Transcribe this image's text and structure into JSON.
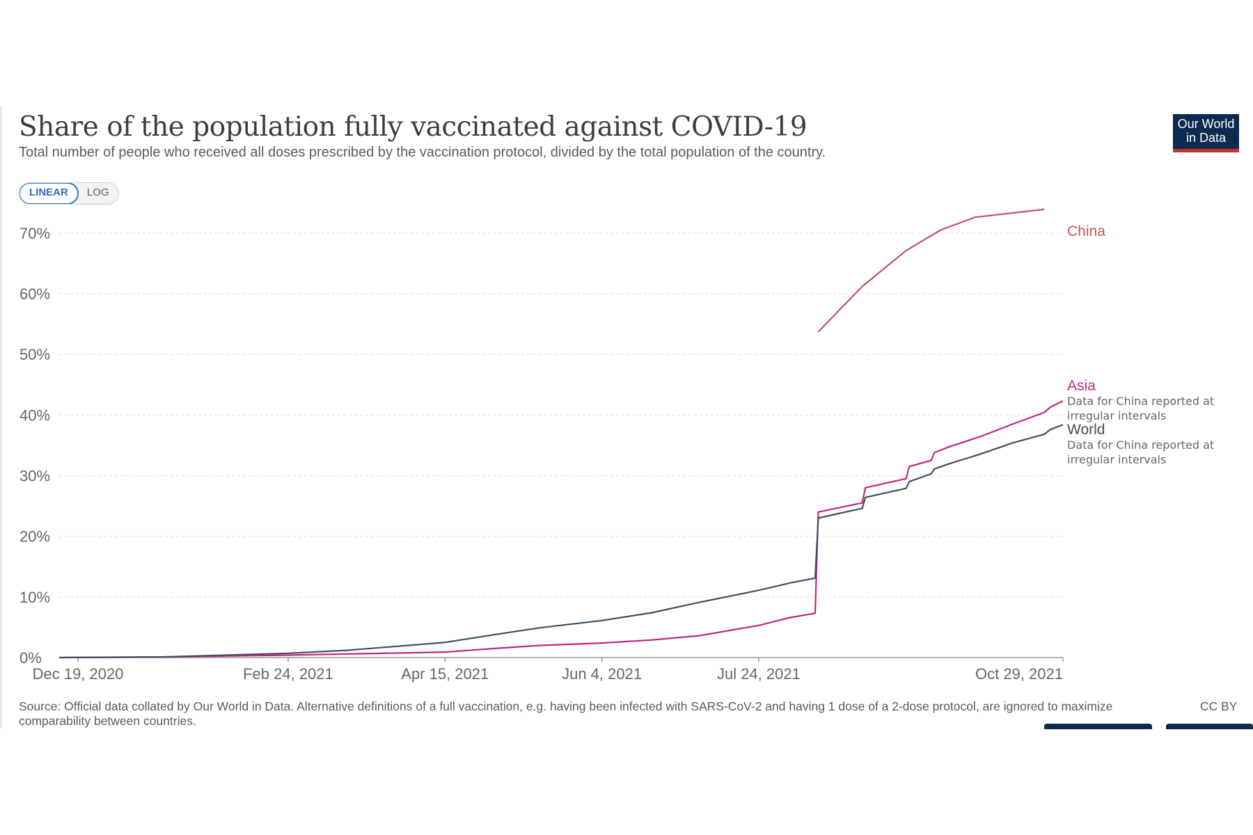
{
  "header": {
    "title": "Share of the population fully vaccinated against COVID-19",
    "subtitle": "Total number of people who received all doses prescribed by the vaccination protocol, divided by the total population of the country.",
    "logo_line1": "Our World",
    "logo_line2": "in Data"
  },
  "controls": {
    "linear_label": "LINEAR",
    "log_label": "LOG",
    "selected": "LINEAR"
  },
  "footer": {
    "source": "Source: Official data collated by Our World in Data. Alternative definitions of a full vaccination, e.g. having been infected with SARS-CoV-2 and having 1 dose of a 2-dose protocol, are ignored to maximize comparability between countries.",
    "license": "CC BY"
  },
  "chart_data": {
    "type": "line",
    "title": "Share of the population fully vaccinated against COVID-19",
    "xlabel": "",
    "ylabel": "",
    "x_range": [
      "2020-12-13",
      "2021-10-29"
    ],
    "ylim": [
      0,
      74
    ],
    "y_ticks": [
      0,
      10,
      20,
      30,
      40,
      50,
      60,
      70
    ],
    "y_tick_labels": [
      "0%",
      "10%",
      "20%",
      "30%",
      "40%",
      "50%",
      "60%",
      "70%"
    ],
    "x_ticks": [
      "2020-12-19",
      "2021-02-24",
      "2021-04-15",
      "2021-06-04",
      "2021-07-24",
      "2021-10-29"
    ],
    "x_tick_labels": [
      "Dec 19, 2020",
      "Feb 24, 2021",
      "Apr 15, 2021",
      "Jun 4, 2021",
      "Jul 24, 2021",
      "Oct 29, 2021"
    ],
    "grid": "horizontal dashed",
    "series": [
      {
        "name": "China",
        "color": "#c4505e",
        "points": [
          [
            "2021-08-12",
            53.7
          ],
          [
            "2021-08-26",
            61.2
          ],
          [
            "2021-09-09",
            67.1
          ],
          [
            "2021-09-20",
            70.5
          ],
          [
            "2021-10-01",
            72.6
          ],
          [
            "2021-10-23",
            73.9
          ]
        ]
      },
      {
        "name": "Asia",
        "color": "#c0267e",
        "annotation": "Data for China reported at irregular intervals",
        "points": [
          [
            "2020-12-13",
            0
          ],
          [
            "2021-01-15",
            0.1
          ],
          [
            "2021-02-24",
            0.4
          ],
          [
            "2021-03-15",
            0.6
          ],
          [
            "2021-04-15",
            0.9
          ],
          [
            "2021-05-01",
            1.5
          ],
          [
            "2021-05-15",
            2.0
          ],
          [
            "2021-06-04",
            2.4
          ],
          [
            "2021-06-20",
            2.9
          ],
          [
            "2021-07-05",
            3.6
          ],
          [
            "2021-07-24",
            5.3
          ],
          [
            "2021-08-03",
            6.6
          ],
          [
            "2021-08-11",
            7.3
          ],
          [
            "2021-08-12",
            24.0
          ],
          [
            "2021-08-26",
            25.5
          ],
          [
            "2021-08-27",
            28.0
          ],
          [
            "2021-09-09",
            29.5
          ],
          [
            "2021-09-10",
            31.5
          ],
          [
            "2021-09-17",
            32.5
          ],
          [
            "2021-09-18",
            33.8
          ],
          [
            "2021-09-23",
            34.8
          ],
          [
            "2021-10-03",
            36.5
          ],
          [
            "2021-10-13",
            38.5
          ],
          [
            "2021-10-23",
            40.4
          ],
          [
            "2021-10-25",
            41.3
          ],
          [
            "2021-10-29",
            42.3
          ]
        ]
      },
      {
        "name": "World",
        "color": "#424e5c",
        "annotation": "Data for China reported at irregular intervals",
        "points": [
          [
            "2020-12-13",
            0
          ],
          [
            "2021-01-15",
            0.1
          ],
          [
            "2021-02-24",
            0.7
          ],
          [
            "2021-03-15",
            1.2
          ],
          [
            "2021-04-15",
            2.5
          ],
          [
            "2021-05-01",
            3.8
          ],
          [
            "2021-05-15",
            4.9
          ],
          [
            "2021-06-04",
            6.1
          ],
          [
            "2021-06-20",
            7.4
          ],
          [
            "2021-07-05",
            9.1
          ],
          [
            "2021-07-24",
            11.1
          ],
          [
            "2021-08-03",
            12.3
          ],
          [
            "2021-08-11",
            13.1
          ],
          [
            "2021-08-12",
            23.0
          ],
          [
            "2021-08-26",
            24.6
          ],
          [
            "2021-08-27",
            26.4
          ],
          [
            "2021-09-09",
            27.9
          ],
          [
            "2021-09-10",
            29.0
          ],
          [
            "2021-09-17",
            30.3
          ],
          [
            "2021-09-18",
            31.1
          ],
          [
            "2021-09-23",
            32.0
          ],
          [
            "2021-10-03",
            33.6
          ],
          [
            "2021-10-13",
            35.4
          ],
          [
            "2021-10-23",
            36.8
          ],
          [
            "2021-10-25",
            37.6
          ],
          [
            "2021-10-29",
            38.4
          ]
        ]
      }
    ]
  }
}
